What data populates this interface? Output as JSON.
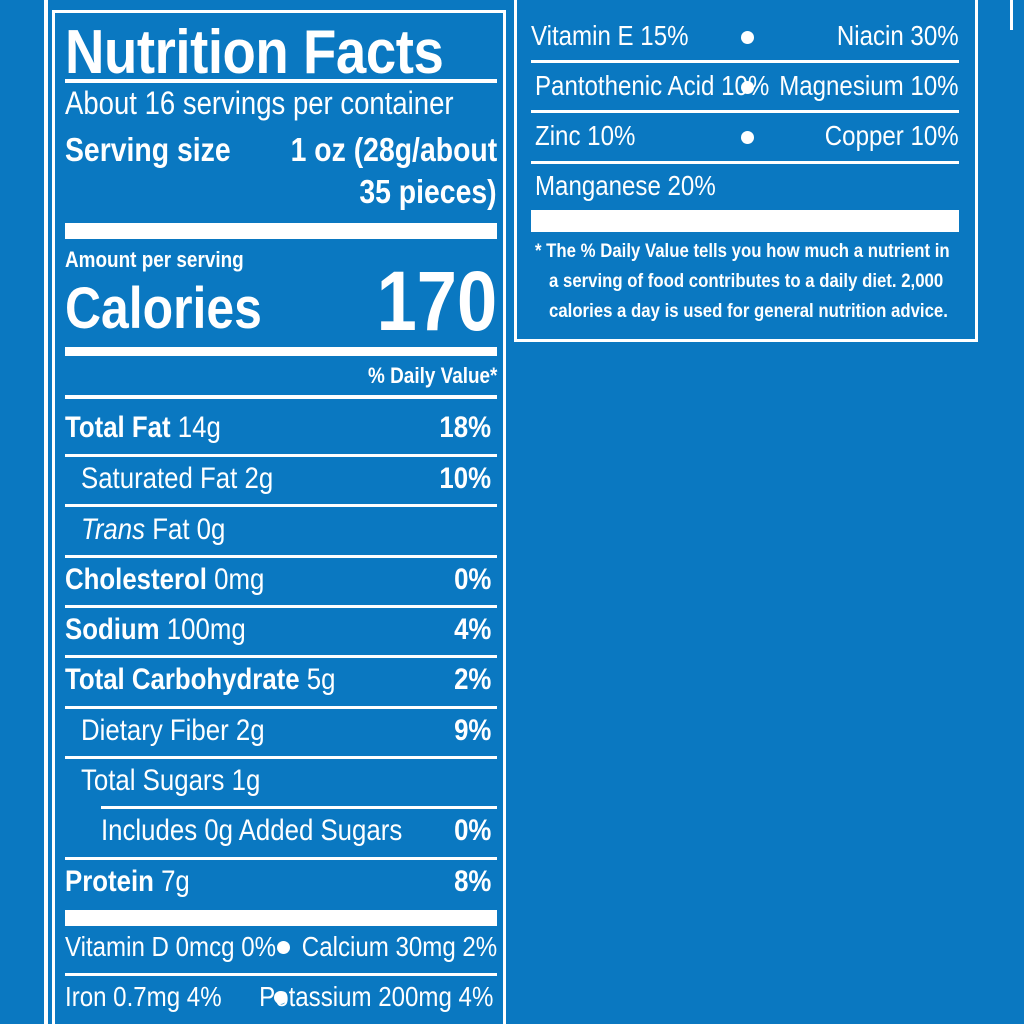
{
  "label": {
    "title": "Nutrition Facts",
    "servings": "About 16 servings per container",
    "serving_size_label": "Serving size",
    "serving_size_value_1": "1 oz (28g/about",
    "serving_size_value_2": "35 pieces)",
    "amount_per_serving": "Amount per serving",
    "calories_label": "Calories",
    "calories_value": "170",
    "dv_header": "% Daily Value*",
    "nutrients": [
      {
        "name": "Total Fat",
        "amount": "14g",
        "dv": "18%"
      },
      {
        "name": "Saturated Fat",
        "amount": "2g",
        "dv": "10%"
      },
      {
        "name": "Trans",
        "name_suffix": "Fat",
        "amount": "0g",
        "dv": ""
      },
      {
        "name": "Cholesterol",
        "amount": "0mg",
        "dv": "0%"
      },
      {
        "name": "Sodium",
        "amount": "100mg",
        "dv": "4%"
      },
      {
        "name": "Total Carbohydrate",
        "amount": "5g",
        "dv": "2%"
      },
      {
        "name": "Dietary Fiber",
        "amount": "2g",
        "dv": "9%"
      },
      {
        "name": "Total Sugars",
        "amount": "1g",
        "dv": ""
      },
      {
        "name": "Includes 0g Added Sugars",
        "amount": "",
        "dv": "0%"
      },
      {
        "name": "Protein",
        "amount": "7g",
        "dv": "8%"
      }
    ],
    "micros_left": [
      {
        "left": "Vitamin D 0mcg 0%",
        "right": "Calcium 30mg 2%"
      },
      {
        "left": "Iron 0.7mg 4%",
        "right": "Potassium 200mg 4%"
      }
    ],
    "micros_right": [
      {
        "left": "Vitamin E 15%",
        "right": "Niacin 30%"
      },
      {
        "left": "Pantothenic Acid 10%",
        "right": "Magnesium 10%"
      },
      {
        "left": "Zinc 10%",
        "right": "Copper 10%"
      },
      {
        "left": "Manganese 20%",
        "right": ""
      }
    ],
    "footnote_1": "* The % Daily Value tells you how much a nutrient in",
    "footnote_2": "a serving of food contributes to a daily diet. 2,000",
    "footnote_3": "calories a day is used for general nutrition advice."
  },
  "colors": {
    "background": "#0a78c1",
    "ink": "#ffffff"
  }
}
